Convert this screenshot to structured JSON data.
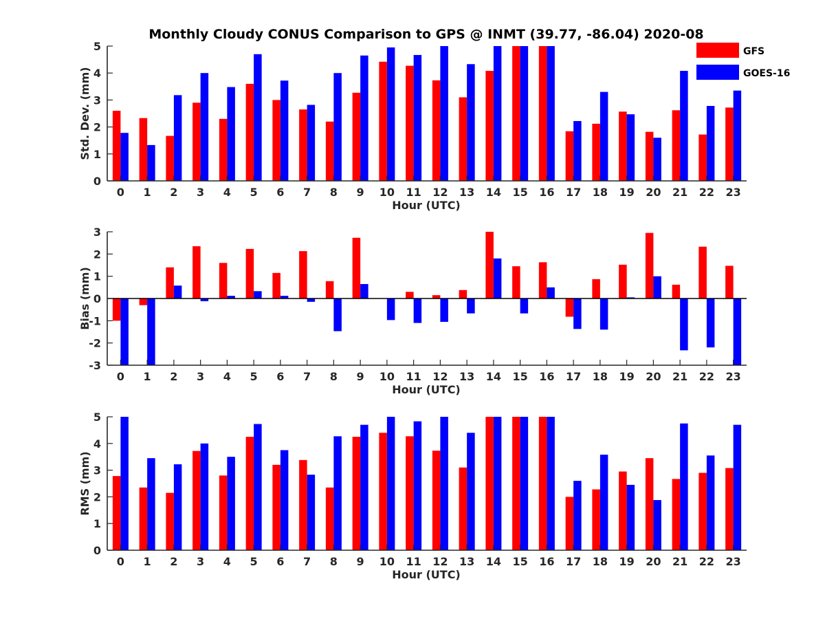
{
  "chart_data": {
    "type": "bar",
    "title": "Monthly Cloudy CONUS Comparison to GPS @ INMT (39.77, -86.04) 2020-08",
    "legend": {
      "placement": "top-right",
      "entries": [
        {
          "name": "GFS",
          "color": "#ff0000"
        },
        {
          "name": "GOES-16",
          "color": "#0000ff"
        }
      ]
    },
    "categories": [
      "0",
      "1",
      "2",
      "3",
      "4",
      "5",
      "6",
      "7",
      "8",
      "9",
      "10",
      "11",
      "12",
      "13",
      "14",
      "15",
      "16",
      "17",
      "18",
      "19",
      "20",
      "21",
      "22",
      "23"
    ],
    "panels": [
      {
        "name": "std",
        "xlabel": "Hour (UTC)",
        "ylabel": "Std. Dev. (mm)",
        "ylim": [
          0,
          5
        ],
        "yticks": [
          0,
          1,
          2,
          3,
          4,
          5
        ],
        "grid": false,
        "series": [
          {
            "name": "GFS",
            "color": "#ff0000",
            "values": [
              2.6,
              2.33,
              1.67,
              2.9,
              2.3,
              3.6,
              3.0,
              2.65,
              2.2,
              3.27,
              4.42,
              4.27,
              3.73,
              3.1,
              4.08,
              5.0,
              5.0,
              1.84,
              2.12,
              2.57,
              1.82,
              2.62,
              1.72,
              2.72
            ]
          },
          {
            "name": "GOES-16",
            "color": "#0000ff",
            "values": [
              1.78,
              1.33,
              3.18,
              4.0,
              3.48,
              4.7,
              3.72,
              2.82,
              4.0,
              4.65,
              4.95,
              4.67,
              5.0,
              4.33,
              5.0,
              5.0,
              5.0,
              2.22,
              3.3,
              2.47,
              1.6,
              4.08,
              2.78,
              3.35
            ]
          }
        ]
      },
      {
        "name": "bias",
        "xlabel": "Hour (UTC)",
        "ylabel": "Bias (mm)",
        "ylim": [
          -3,
          3
        ],
        "yticks": [
          -3,
          -2,
          -1,
          0,
          1,
          2,
          3
        ],
        "grid": false,
        "zero_line": true,
        "series": [
          {
            "name": "GFS",
            "color": "#ff0000",
            "values": [
              -1.0,
              -0.3,
              1.4,
              2.35,
              1.6,
              2.23,
              1.15,
              2.13,
              0.78,
              2.73,
              0.0,
              0.3,
              0.15,
              0.38,
              3.0,
              1.45,
              1.63,
              -0.82,
              0.87,
              1.52,
              2.95,
              0.62,
              2.33,
              1.47
            ]
          },
          {
            "name": "GOES-16",
            "color": "#0000ff",
            "values": [
              -3.0,
              -3.0,
              0.58,
              -0.12,
              0.12,
              0.33,
              0.12,
              -0.15,
              -1.47,
              0.65,
              -0.97,
              -1.1,
              -1.05,
              -0.67,
              1.8,
              -0.67,
              0.5,
              -1.37,
              -1.4,
              0.05,
              1.0,
              -2.33,
              -2.2,
              -3.0
            ]
          }
        ]
      },
      {
        "name": "rms",
        "xlabel": "Hour (UTC)",
        "ylabel": "RMS (mm)",
        "ylim": [
          0,
          5
        ],
        "yticks": [
          0,
          1,
          2,
          3,
          4,
          5
        ],
        "grid": false,
        "series": [
          {
            "name": "GFS",
            "color": "#ff0000",
            "values": [
              2.78,
              2.35,
              2.15,
              3.72,
              2.8,
              4.25,
              3.2,
              3.38,
              2.35,
              4.25,
              4.4,
              4.27,
              3.73,
              3.1,
              5.0,
              5.0,
              5.0,
              2.0,
              2.28,
              2.95,
              3.45,
              2.67,
              2.9,
              3.08
            ]
          },
          {
            "name": "GOES-16",
            "color": "#0000ff",
            "values": [
              5.0,
              3.45,
              3.22,
              4.0,
              3.5,
              4.73,
              3.75,
              2.83,
              4.27,
              4.7,
              5.0,
              4.83,
              5.0,
              4.4,
              5.0,
              5.0,
              5.0,
              2.6,
              3.58,
              2.45,
              1.88,
              4.75,
              3.55,
              4.7
            ]
          }
        ]
      }
    ]
  }
}
